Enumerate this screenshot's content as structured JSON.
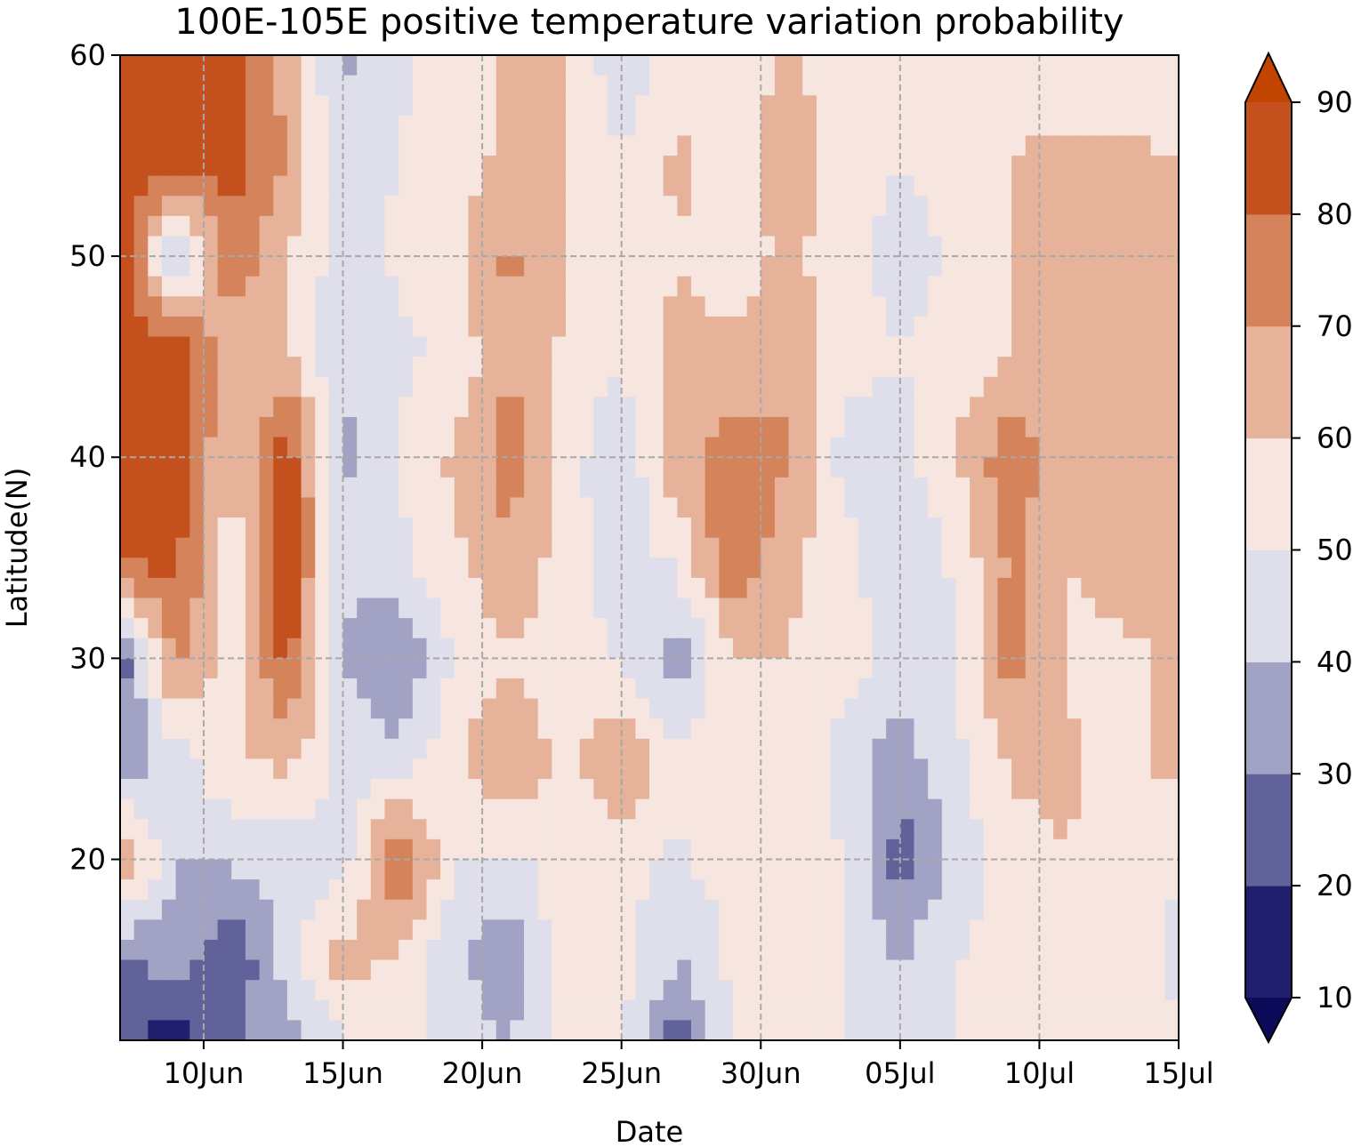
{
  "chart_data": {
    "type": "heatmap",
    "title": "100E-105E positive temperature variation probability",
    "xlabel": "Date",
    "ylabel": "Latitude(N)",
    "x_ticks": [
      {
        "label": "10Jun",
        "day": 10
      },
      {
        "label": "15Jun",
        "day": 15
      },
      {
        "label": "20Jun",
        "day": 20
      },
      {
        "label": "25Jun",
        "day": 25
      },
      {
        "label": "30Jun",
        "day": 30
      },
      {
        "label": "05Jul",
        "day": 35
      },
      {
        "label": "10Jul",
        "day": 40
      },
      {
        "label": "15Jul",
        "day": 45
      }
    ],
    "x_range_days": [
      7,
      45
    ],
    "y_ticks": [
      20,
      30,
      40,
      50,
      60
    ],
    "y_range": [
      11,
      60
    ],
    "grid": true,
    "colorbar": {
      "levels": [
        10,
        20,
        30,
        40,
        50,
        60,
        70,
        80,
        90
      ],
      "tick_labels": [
        "10",
        "20",
        "30",
        "40",
        "50",
        "60",
        "70",
        "80",
        "90"
      ],
      "colors": [
        "#1f1f6e",
        "#62629b",
        "#a2a2c4",
        "#dfdfeb",
        "#f7e6e0",
        "#e6b39a",
        "#d4835b",
        "#c4501e"
      ],
      "under_color": "#0b0b5a",
      "over_color": "#c14400",
      "extend": "both"
    },
    "latitudes": [
      60,
      55,
      50,
      45,
      40,
      35,
      30,
      25,
      20,
      15,
      11
    ],
    "days": [
      7,
      9,
      11,
      13,
      15,
      17,
      19,
      21,
      23,
      25,
      27,
      29,
      31,
      33,
      35,
      37,
      39,
      41,
      43,
      45
    ],
    "values": [
      [
        88,
        88,
        82,
        65,
        38,
        48,
        55,
        62,
        60,
        42,
        56,
        55,
        60,
        55,
        50,
        58,
        55,
        55,
        55,
        50
      ],
      [
        90,
        90,
        83,
        70,
        42,
        50,
        56,
        62,
        60,
        50,
        62,
        55,
        68,
        55,
        50,
        55,
        60,
        62,
        62,
        60
      ],
      [
        90,
        35,
        80,
        60,
        45,
        52,
        58,
        72,
        60,
        55,
        60,
        55,
        62,
        55,
        45,
        52,
        60,
        62,
        60,
        60
      ],
      [
        90,
        88,
        62,
        62,
        40,
        48,
        52,
        70,
        58,
        52,
        62,
        62,
        68,
        55,
        50,
        55,
        60,
        62,
        60,
        68
      ],
      [
        90,
        88,
        58,
        88,
        38,
        50,
        62,
        75,
        55,
        40,
        68,
        75,
        72,
        45,
        45,
        60,
        78,
        62,
        65,
        62
      ],
      [
        85,
        82,
        55,
        88,
        42,
        48,
        58,
        68,
        55,
        45,
        52,
        80,
        62,
        55,
        40,
        52,
        72,
        60,
        65,
        60
      ],
      [
        22,
        75,
        52,
        85,
        40,
        28,
        52,
        58,
        55,
        48,
        35,
        58,
        60,
        55,
        45,
        48,
        75,
        58,
        58,
        62
      ],
      [
        32,
        45,
        60,
        62,
        48,
        42,
        58,
        72,
        55,
        72,
        52,
        58,
        58,
        45,
        35,
        48,
        62,
        62,
        55,
        65
      ],
      [
        72,
        40,
        42,
        45,
        45,
        82,
        50,
        48,
        55,
        52,
        48,
        55,
        55,
        50,
        25,
        42,
        55,
        60,
        55,
        50
      ],
      [
        28,
        35,
        20,
        45,
        65,
        58,
        42,
        32,
        58,
        55,
        40,
        52,
        55,
        50,
        40,
        50,
        55,
        50,
        55,
        48
      ],
      [
        22,
        15,
        30,
        35,
        50,
        55,
        45,
        40,
        55,
        50,
        25,
        50,
        50,
        50,
        45,
        50,
        50,
        52,
        58,
        50
      ]
    ]
  }
}
